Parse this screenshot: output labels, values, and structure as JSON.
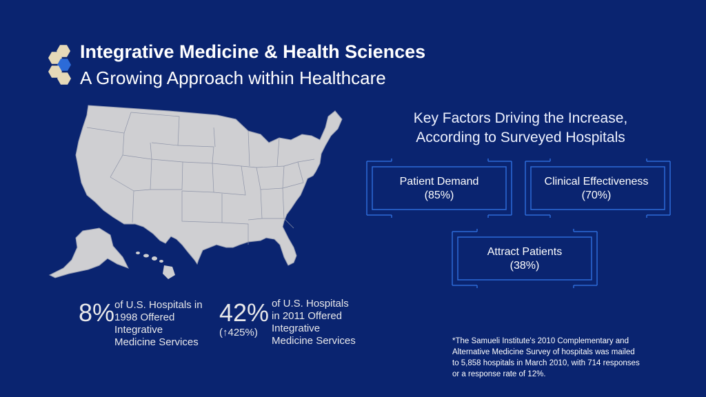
{
  "header": {
    "title": "Integrative Medicine & Health Sciences",
    "subtitle": "A Growing Approach within Healthcare"
  },
  "icons": {
    "logo": "hexagon-cluster-icon",
    "map": "us-map-illustration",
    "arrow": "up-arrow-icon"
  },
  "colors": {
    "background": "#0a2470",
    "accent": "#2c6bd8",
    "logo_tan": "#e6d9b8",
    "map_fill": "#cfcfd2"
  },
  "factors": {
    "heading_line1": "Key Factors Driving the Increase,",
    "heading_line2": "According to Surveyed Hospitals",
    "items": [
      {
        "label": "Patient Demand",
        "value": "(85%)"
      },
      {
        "label": "Clinical Effectiveness",
        "value": "(70%)"
      },
      {
        "label": "Attract Patients",
        "value": "(38%)"
      }
    ]
  },
  "stats": [
    {
      "value": "8%",
      "lines": [
        "of U.S. Hospitals in",
        "1998 Offered",
        "Integrative",
        "Medicine Services"
      ]
    },
    {
      "value": "42%",
      "change": "425%)",
      "change_prefix": "(",
      "lines": [
        "of U.S. Hospitals",
        "in 2011 Offered",
        "Integrative",
        "Medicine Services"
      ]
    }
  ],
  "footnote": {
    "lines": [
      "*The Samueli Institute's 2010 Complementary and",
      "Alternative Medicine Survey of hospitals was mailed",
      "to 5,858 hospitals in March 2010, with 714 responses",
      "or a response rate of 12%."
    ]
  }
}
